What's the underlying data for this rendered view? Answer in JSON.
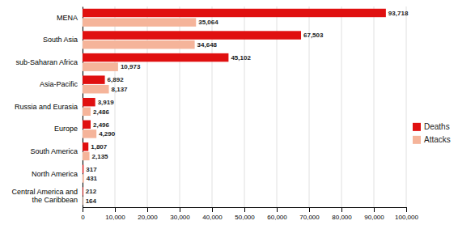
{
  "chart_data": {
    "type": "bar",
    "orientation": "horizontal",
    "categories": [
      "Central America and\nthe Caribbean",
      "North America",
      "South America",
      "Europe",
      "Russia and Eurasia",
      "Asia-Pacific",
      "sub-Saharan Africa",
      "South Asia",
      "MENA"
    ],
    "series": [
      {
        "name": "Deaths",
        "color": "#e01010",
        "values": [
          212,
          317,
          1807,
          2496,
          3919,
          6892,
          45102,
          67503,
          93718
        ],
        "value_labels": [
          "212",
          "317",
          "1,807",
          "2,496",
          "3,919",
          "6,892",
          "45,102",
          "67,503",
          "93,718"
        ]
      },
      {
        "name": "Attacks",
        "color": "#f5b49a",
        "values": [
          164,
          431,
          2135,
          4290,
          2486,
          8137,
          10973,
          34648,
          35064
        ],
        "value_labels": [
          "164",
          "431",
          "2,135",
          "4,290",
          "2,486",
          "8,137",
          "10,973",
          "34,648",
          "35,064"
        ]
      }
    ],
    "xlim": [
      0,
      100000
    ],
    "xticks": [
      0,
      {
        "value": 10000,
        "label": "10,000"
      },
      {
        "value": 20000,
        "label": "20,000"
      },
      {
        "value": 30000,
        "label": "30,000"
      },
      {
        "value": 40000,
        "label": "40,000"
      },
      {
        "value": 50000,
        "label": "50,000"
      },
      {
        "value": 60000,
        "label": "60,000"
      },
      {
        "value": 70000,
        "label": "70,000"
      },
      {
        "value": 80000,
        "label": "80,000"
      },
      {
        "value": 90000,
        "label": "90,000"
      },
      {
        "value": 100000,
        "label": "100,000"
      }
    ],
    "grid": true,
    "legend": "right",
    "data_labels": true
  }
}
